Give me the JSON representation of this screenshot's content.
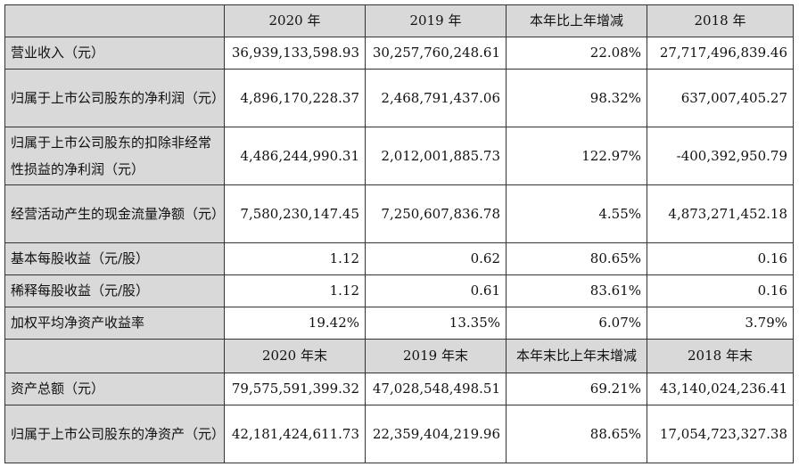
{
  "header_top": [
    "2020 年",
    "2019 年",
    "本年比上年增减",
    "2018 年"
  ],
  "rows_top": [
    {
      "label": "营业收入（元）",
      "values": [
        "36,939,133,598.93",
        "30,257,760,248.61",
        "22.08%",
        "27,717,496,839.46"
      ]
    },
    {
      "label": "归属于上市公司股东的净利润（元）",
      "values": [
        "4,896,170,228.37",
        "2,468,791,437.06",
        "98.32%",
        "637,007,405.27"
      ]
    },
    {
      "label": "归属于上市公司股东的扣除非经常性损益的净利润（元）",
      "values": [
        "4,486,244,990.31",
        "2,012,001,885.73",
        "122.97%",
        "-400,392,950.79"
      ]
    },
    {
      "label": "经营活动产生的现金流量净额（元）",
      "values": [
        "7,580,230,147.45",
        "7,250,607,836.78",
        "4.55%",
        "4,873,271,452.18"
      ]
    },
    {
      "label": "基本每股收益（元/股）",
      "values": [
        "1.12",
        "0.62",
        "80.65%",
        "0.16"
      ]
    },
    {
      "label": "稀释每股收益（元/股）",
      "values": [
        "1.12",
        "0.61",
        "83.61%",
        "0.16"
      ]
    },
    {
      "label": "加权平均净资产收益率",
      "values": [
        "19.42%",
        "13.35%",
        "6.07%",
        "3.79%"
      ]
    }
  ],
  "header_bottom": [
    "2020 年末",
    "2019 年末",
    "本年末比上年末增减",
    "2018 年末"
  ],
  "rows_bottom": [
    {
      "label": "资产总额（元）",
      "values": [
        "79,575,591,399.32",
        "47,028,548,498.51",
        "69.21%",
        "43,140,024,236.41"
      ]
    },
    {
      "label": "归属于上市公司股东的净资产（元）",
      "values": [
        "42,181,424,611.73",
        "22,359,404,219.96",
        "88.65%",
        "17,054,723,327.38"
      ]
    }
  ]
}
